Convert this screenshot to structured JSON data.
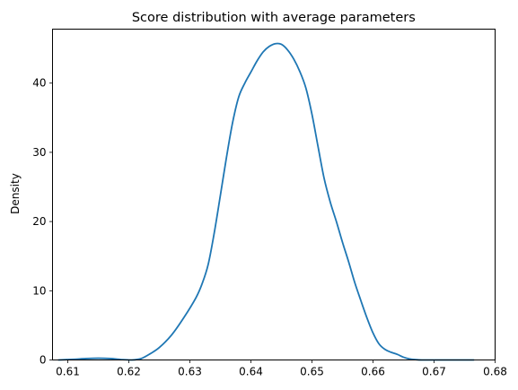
{
  "chart_data": {
    "type": "line",
    "title": "Score distribution with average parameters",
    "xlabel": "",
    "ylabel": "Density",
    "xlim": [
      0.6075,
      0.68
    ],
    "ylim": [
      0,
      47.8
    ],
    "grid": false,
    "legend": "none",
    "x_ticks": [
      0.61,
      0.62,
      0.63,
      0.64,
      0.65,
      0.66,
      0.67,
      0.68
    ],
    "x_tick_labels": [
      "0.61",
      "0.62",
      "0.63",
      "0.64",
      "0.65",
      "0.66",
      "0.67",
      "0.68"
    ],
    "y_ticks": [
      0,
      10,
      20,
      30,
      40
    ],
    "y_tick_labels": [
      "0",
      "10",
      "20",
      "30",
      "40"
    ],
    "series": [
      {
        "color": "#1f77b4",
        "x": [
          0.6085,
          0.611,
          0.613,
          0.615,
          0.617,
          0.619,
          0.6205,
          0.622,
          0.6235,
          0.625,
          0.627,
          0.629,
          0.631,
          0.632,
          0.633,
          0.634,
          0.635,
          0.636,
          0.637,
          0.638,
          0.639,
          0.64,
          0.641,
          0.642,
          0.643,
          0.644,
          0.645,
          0.646,
          0.647,
          0.648,
          0.649,
          0.65,
          0.651,
          0.652,
          0.653,
          0.654,
          0.655,
          0.656,
          0.657,
          0.658,
          0.659,
          0.66,
          0.661,
          0.662,
          0.663,
          0.664,
          0.665,
          0.666,
          0.667,
          0.668,
          0.67,
          0.672,
          0.674,
          0.6765
        ],
        "y": [
          0.0,
          0.1,
          0.2,
          0.25,
          0.2,
          0.05,
          0.0,
          0.2,
          0.9,
          1.8,
          3.6,
          6.1,
          9.0,
          11.0,
          13.8,
          18.4,
          23.8,
          29.3,
          34.3,
          38.0,
          40.0,
          41.6,
          43.2,
          44.5,
          45.3,
          45.7,
          45.6,
          44.8,
          43.5,
          41.7,
          39.3,
          35.5,
          30.8,
          26.2,
          22.8,
          20.0,
          17.0,
          14.2,
          11.2,
          8.6,
          6.1,
          3.9,
          2.3,
          1.5,
          1.1,
          0.8,
          0.4,
          0.15,
          0.05,
          0.0,
          0.0,
          0.0,
          0.0,
          0.0
        ]
      }
    ]
  }
}
